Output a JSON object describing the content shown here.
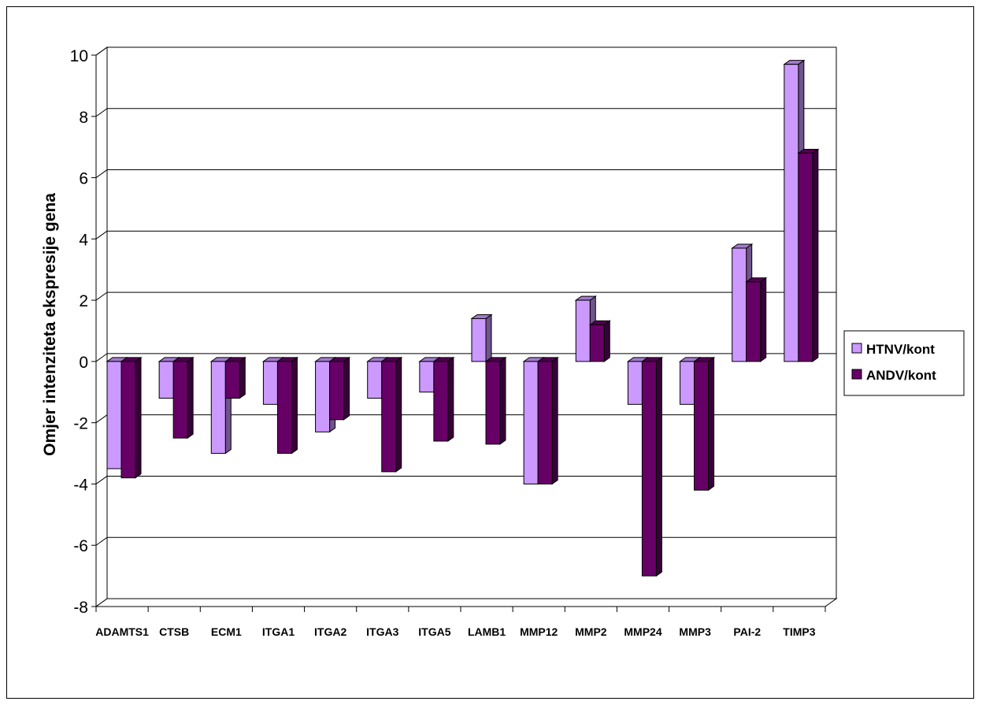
{
  "chart_data": {
    "type": "bar",
    "title": "",
    "xlabel": "",
    "ylabel": "Omjer intenziteta ekspresije gena",
    "ylim": [
      -8,
      10
    ],
    "yticks": [
      -8,
      -6,
      -4,
      -2,
      0,
      2,
      4,
      6,
      8,
      10
    ],
    "ytick_labels": [
      "-8",
      "-6",
      "-4",
      "-2",
      "0",
      "2",
      "4",
      "6",
      "8",
      "10"
    ],
    "grid": true,
    "legend_position": "right",
    "three_d": true,
    "categories": [
      "ADAMTS1",
      "CTSB",
      "ECM1",
      "ITGA1",
      "ITGA2",
      "ITGA3",
      "ITGA5",
      "LAMB1",
      "MMP12",
      "MMP2",
      "MMP24",
      "MMP3",
      "PAI-2",
      "TIMP3"
    ],
    "series": [
      {
        "name": "HTNV/kont",
        "color": "#cc99ff",
        "values": [
          -3.5,
          -1.2,
          -3.0,
          -1.4,
          -2.3,
          -1.2,
          -1.0,
          1.4,
          -4.0,
          2.0,
          -1.4,
          -1.4,
          3.7,
          9.7
        ]
      },
      {
        "name": "ANDV/kont",
        "color": "#660066",
        "values": [
          -3.8,
          -2.5,
          -1.2,
          -3.0,
          -1.9,
          -3.6,
          -2.6,
          -2.7,
          -4.0,
          1.2,
          -7.0,
          -4.2,
          2.6,
          6.8
        ]
      }
    ]
  }
}
